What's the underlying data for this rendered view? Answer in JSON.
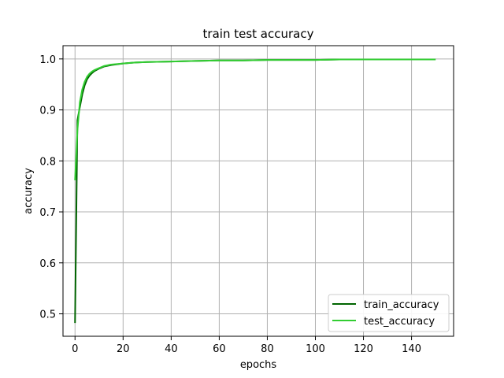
{
  "colors": {
    "background": "#ffffff",
    "axis": "#000000",
    "grid": "#b0b0b0",
    "legend_border": "#cccccc"
  },
  "chart_data": {
    "type": "line",
    "title": "train test accuracy",
    "xlabel": "epochs",
    "ylabel": "accuracy",
    "xlim": [
      -5,
      157.5
    ],
    "ylim": [
      0.456,
      1.026
    ],
    "xticks": [
      0,
      20,
      40,
      60,
      80,
      100,
      120,
      140
    ],
    "yticks": [
      0.5,
      0.6,
      0.7,
      0.8,
      0.9,
      1.0
    ],
    "xtick_labels": [
      "0",
      "20",
      "40",
      "60",
      "80",
      "100",
      "120",
      "140"
    ],
    "ytick_labels": [
      "0.5",
      "0.6",
      "0.7",
      "0.8",
      "0.9",
      "1.0"
    ],
    "grid": true,
    "legend_position": "lower-right",
    "series": [
      {
        "name": "train_accuracy",
        "color": "#006400",
        "x": [
          0,
          1,
          2,
          3,
          4,
          5,
          6,
          7,
          8,
          10,
          12,
          15,
          20,
          25,
          30,
          40,
          50,
          60,
          70,
          80,
          90,
          100,
          110,
          120,
          130,
          140,
          150
        ],
        "y": [
          0.482,
          0.88,
          0.905,
          0.93,
          0.948,
          0.96,
          0.967,
          0.972,
          0.976,
          0.981,
          0.985,
          0.988,
          0.991,
          0.993,
          0.994,
          0.995,
          0.996,
          0.997,
          0.997,
          0.998,
          0.998,
          0.998,
          0.999,
          0.999,
          0.999,
          0.999,
          0.999
        ]
      },
      {
        "name": "test_accuracy",
        "color": "#32cd32",
        "x": [
          0,
          1,
          2,
          3,
          4,
          5,
          6,
          7,
          8,
          10,
          12,
          15,
          20,
          25,
          30,
          40,
          50,
          60,
          70,
          80,
          90,
          100,
          110,
          120,
          130,
          140,
          150
        ],
        "y": [
          0.762,
          0.86,
          0.915,
          0.94,
          0.955,
          0.965,
          0.971,
          0.975,
          0.978,
          0.982,
          0.986,
          0.989,
          0.991,
          0.993,
          0.994,
          0.995,
          0.996,
          0.997,
          0.997,
          0.998,
          0.998,
          0.998,
          0.999,
          0.999,
          0.999,
          0.999,
          0.999
        ]
      }
    ]
  }
}
